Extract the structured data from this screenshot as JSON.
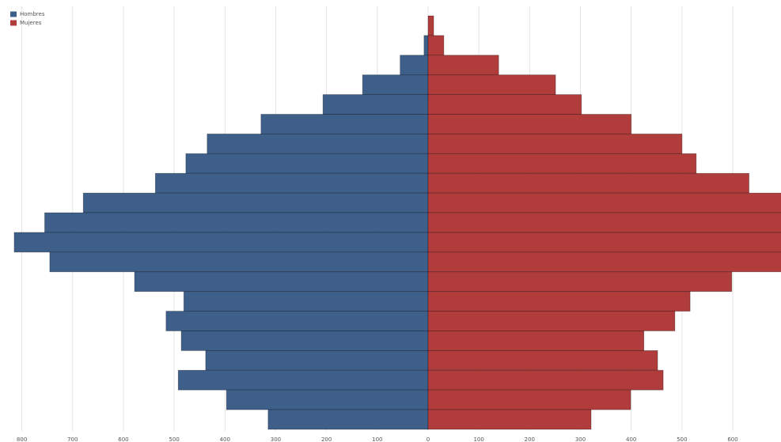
{
  "chart_data": {
    "type": "bar",
    "orientation": "horizontal",
    "stacked": false,
    "categories": [
      null,
      null,
      null,
      null,
      null,
      null,
      null,
      null,
      null,
      null,
      null,
      null,
      null,
      null,
      null,
      null,
      null,
      null,
      null,
      null,
      null
    ],
    "series": [
      {
        "name": "Hombres",
        "color": "#3d5f8a",
        "values": [
          0,
          -8,
          -55,
          -129,
          -207,
          -329,
          -435,
          -477,
          -537,
          -679,
          -755,
          -815,
          -745,
          -578,
          -481,
          -516,
          -486,
          -438,
          -492,
          -397,
          -315
        ]
      },
      {
        "name": "Mujeres",
        "color": "#b03c3c",
        "values": [
          11,
          31,
          139,
          251,
          302,
          400,
          500,
          528,
          632,
          700,
          700,
          700,
          700,
          598,
          516,
          486,
          425,
          452,
          463,
          399,
          321
        ]
      }
    ],
    "xlim": [
      -843,
      695
    ],
    "xticks": [
      {
        "value": -800,
        "label": "800"
      },
      {
        "value": -700,
        "label": "700"
      },
      {
        "value": -600,
        "label": "600"
      },
      {
        "value": -500,
        "label": "500"
      },
      {
        "value": -400,
        "label": "400"
      },
      {
        "value": -300,
        "label": "300"
      },
      {
        "value": -200,
        "label": "200"
      },
      {
        "value": -100,
        "label": "100"
      },
      0,
      100,
      200,
      300,
      400,
      500,
      600
    ],
    "grid": true,
    "legend": "top-left"
  }
}
